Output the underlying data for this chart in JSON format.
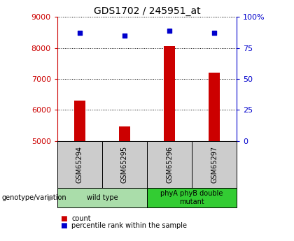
{
  "title": "GDS1702 / 245951_at",
  "samples": [
    "GSM65294",
    "GSM65295",
    "GSM65296",
    "GSM65297"
  ],
  "counts": [
    6300,
    5480,
    8050,
    7200
  ],
  "percentiles": [
    87,
    85,
    89,
    87
  ],
  "ylim_left": [
    5000,
    9000
  ],
  "ylim_right": [
    0,
    100
  ],
  "yticks_left": [
    5000,
    6000,
    7000,
    8000,
    9000
  ],
  "yticks_right": [
    0,
    25,
    50,
    75,
    100
  ],
  "groups": [
    {
      "label": "wild type",
      "samples": [
        0,
        1
      ],
      "color": "#aaddaa"
    },
    {
      "label": "phyA phyB double\nmutant",
      "samples": [
        2,
        3
      ],
      "color": "#33cc33"
    }
  ],
  "bar_color": "#cc0000",
  "scatter_color": "#0000cc",
  "background_color": "#ffffff",
  "left_tick_color": "#cc0000",
  "right_tick_color": "#0000cc",
  "genotype_label": "genotype/variation",
  "legend_count": "count",
  "legend_percentile": "percentile rank within the sample",
  "bar_width": 0.25,
  "sample_box_color": "#cccccc",
  "title_fontsize": 10,
  "tick_fontsize": 8,
  "label_fontsize": 7
}
